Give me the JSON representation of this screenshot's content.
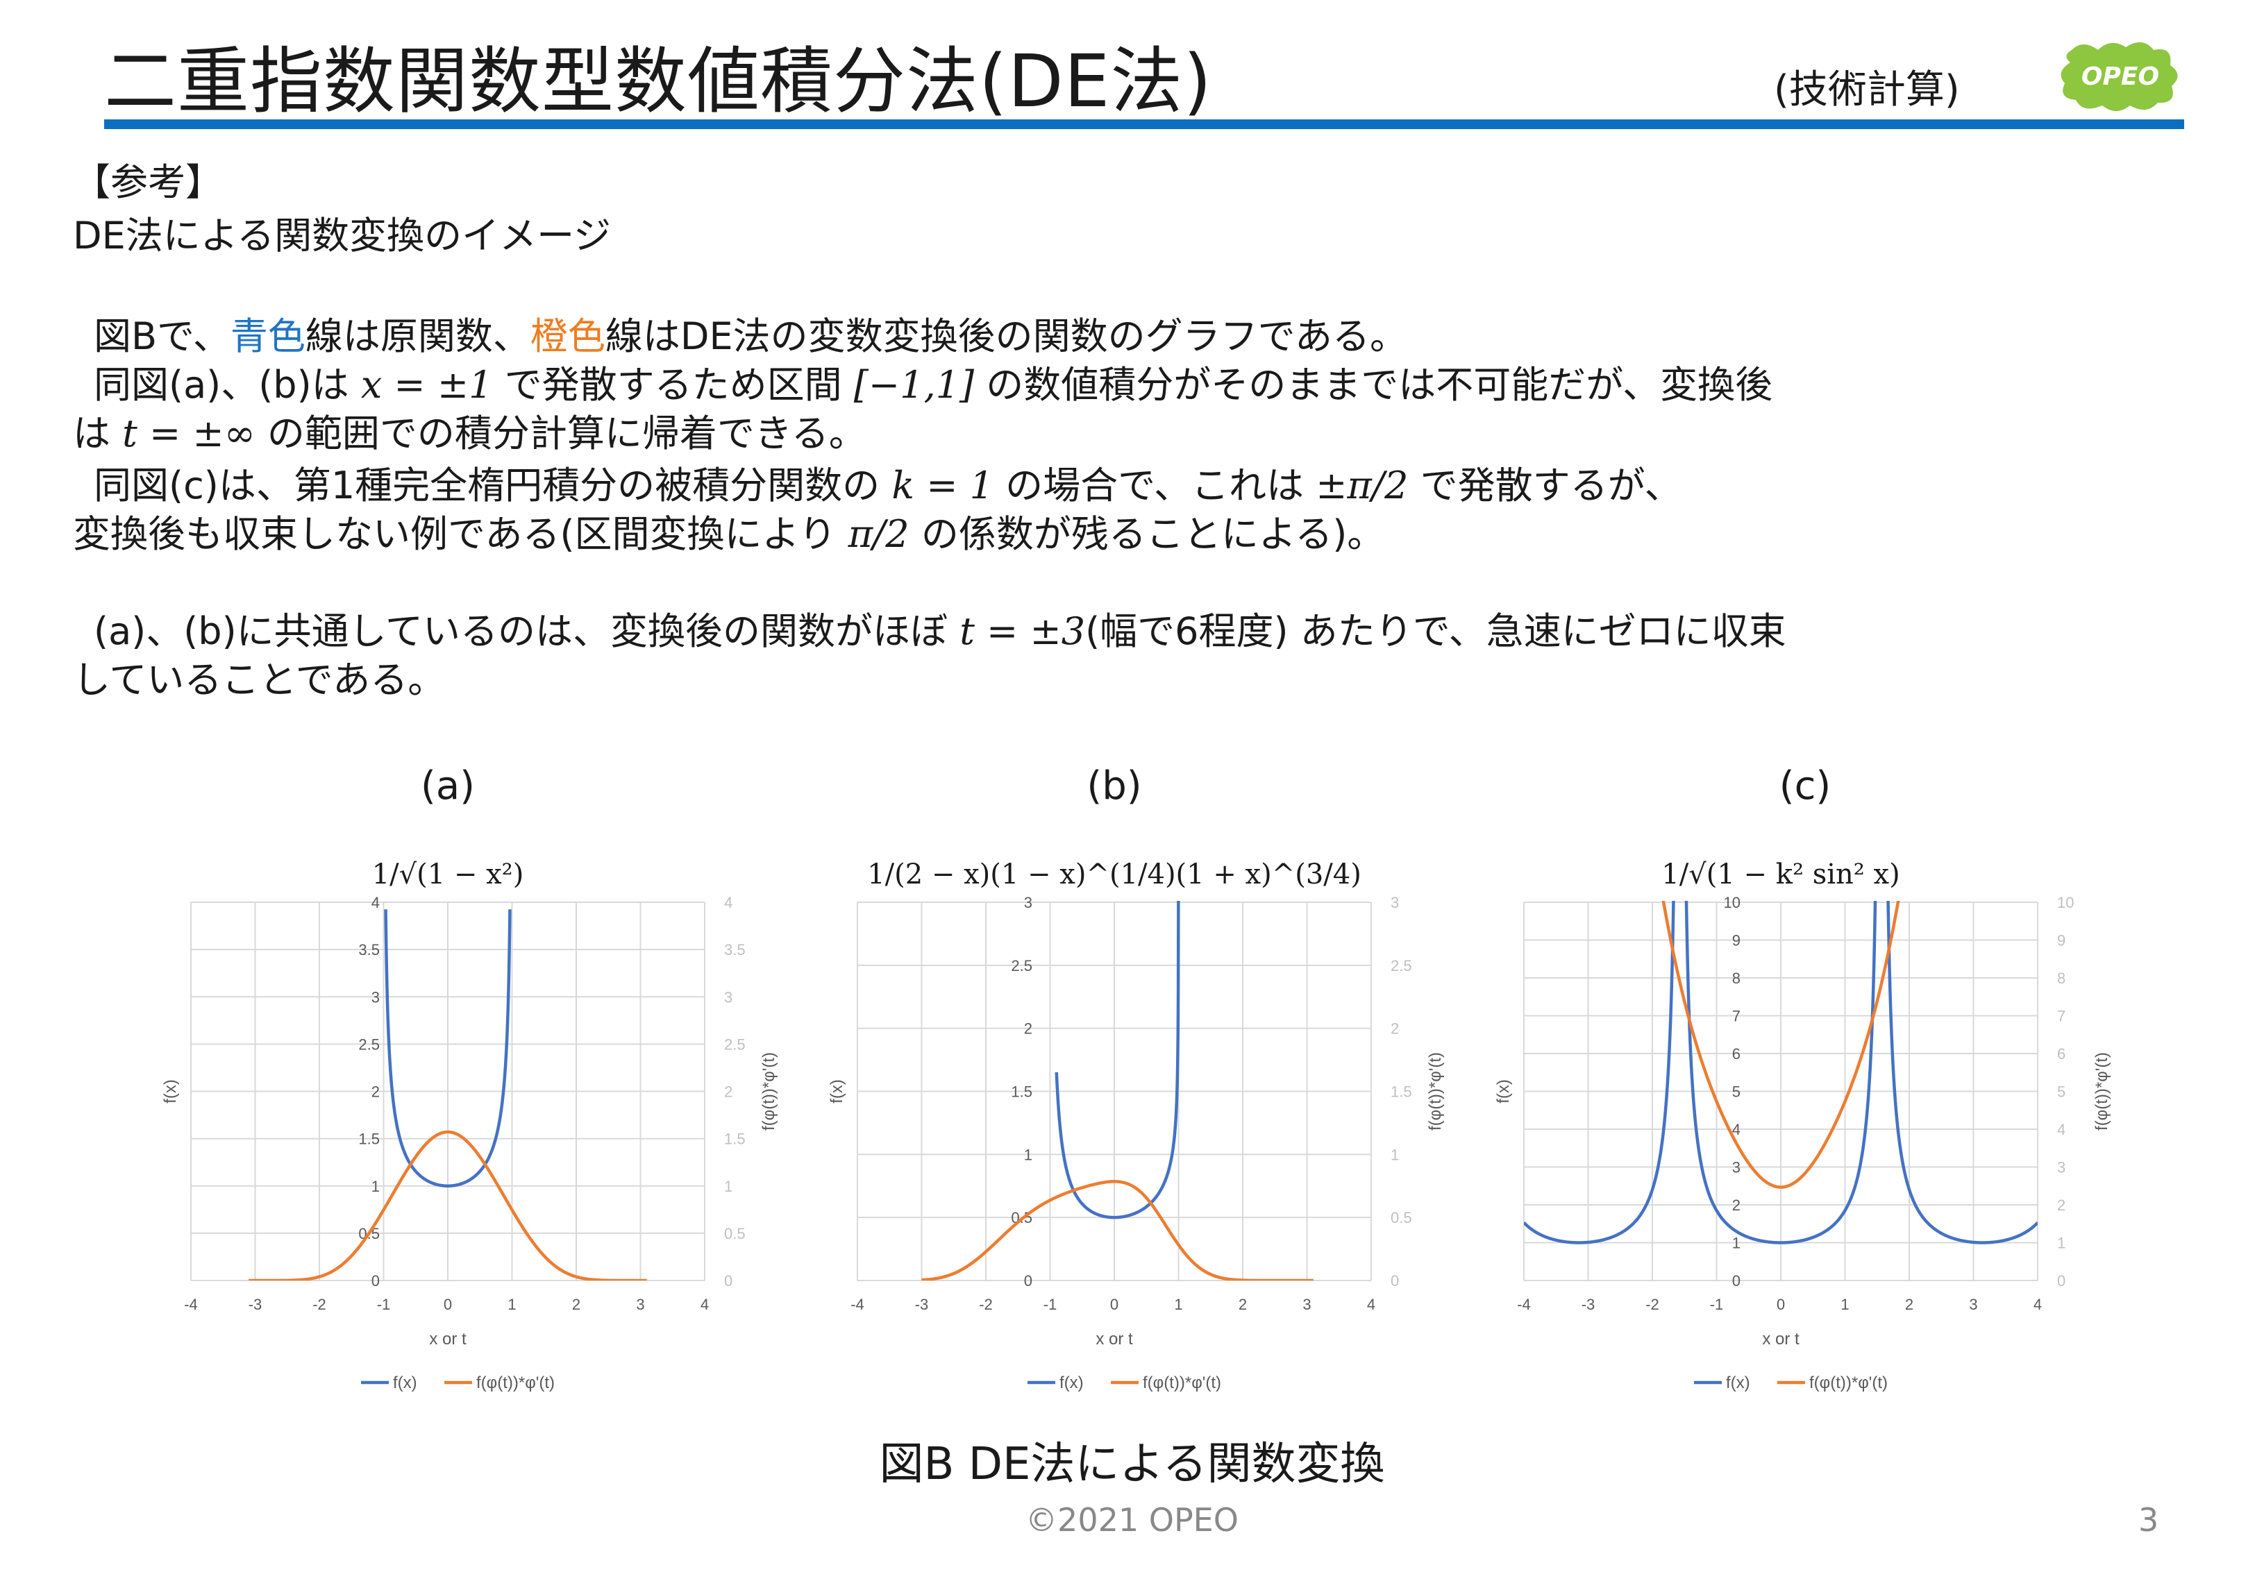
{
  "header": {
    "title": "二重指数関数型数値積分法(DE法)",
    "category": "(技術計算)",
    "logo_text": "OPEO",
    "colors": {
      "rule": "#0b6fc0",
      "logo": "#8dc63f"
    }
  },
  "body": {
    "heading": "【参考】",
    "subheading": "DE法による関数変換のイメージ",
    "p1": {
      "a": "図Bで、",
      "blue": "青色",
      "b": "線は原関数、",
      "orange": "橙色",
      "c": "線はDE法の変数変換後の関数のグラフである。"
    },
    "p2": {
      "a": "同図(a)、(b)は ",
      "m1": "x = ±1",
      "b": " で発散するため区間 ",
      "m2": "[−1,1]",
      "c": " の数値積分がそのままでは不可能だが、変換後"
    },
    "p3": {
      "a": "は ",
      "m1": "t = ±∞",
      "b": " の範囲での積分計算に帰着できる。"
    },
    "p4": {
      "a": "同図(c)は、第1種完全楕円積分の被積分関数の ",
      "m1": "k = 1",
      "b": " の場合で、これは ",
      "m2": "±π/2",
      "c": " で発散するが、"
    },
    "p5": {
      "a": "変換後も収束しない例である(区間変換により ",
      "m1": "π/2",
      "b": " の係数が残ることによる)。"
    },
    "p6": {
      "a": "(a)、(b)に共通しているのは、変換後の関数がほぼ ",
      "m1": "t = ±3",
      "b": "(幅で6程度) あたりで、急速にゼロに収束"
    },
    "p7": "していることである。"
  },
  "chart_data": [
    {
      "panel": "(a)",
      "type": "line",
      "title": "1/√(1 − x²)",
      "xlabel": "x or t",
      "ylabel": "f(x)",
      "y2label": "f(φ(t))*φ'(t)",
      "xlim": [
        -4,
        4
      ],
      "ylim": [
        0,
        4
      ],
      "y2lim": [
        0,
        4
      ],
      "xticks": [
        "-4",
        "-3",
        "-2",
        "-1",
        "0",
        "1",
        "2",
        "3",
        "4"
      ],
      "yticks": [
        "0",
        "0.5",
        "1",
        "1.5",
        "2",
        "2.5",
        "3",
        "3.5",
        "4"
      ],
      "legend_placement": "bottom",
      "grid": true,
      "series": [
        {
          "name": "f(x)",
          "color": "#4472c4",
          "domain": [
            -0.967,
            0.967
          ],
          "func": "f_a"
        },
        {
          "name": "f(φ(t))*φ'(t)",
          "color": "#ed7d31",
          "domain": [
            -3.1,
            3.1
          ],
          "func": "g_a"
        }
      ]
    },
    {
      "panel": "(b)",
      "type": "line",
      "title": "1/(2 − x)(1 − x)^(1/4)(1 + x)^(3/4)",
      "xlabel": "x or t",
      "ylabel": "f(x)",
      "y2label": "f(φ(t))*φ'(t)",
      "xlim": [
        -4,
        4
      ],
      "ylim": [
        0,
        3
      ],
      "y2lim": [
        0,
        3
      ],
      "xticks": [
        "-4",
        "-3",
        "-2",
        "-1",
        "0",
        "1",
        "2",
        "3",
        "4"
      ],
      "yticks": [
        "0",
        "0.5",
        "1",
        "1.5",
        "2",
        "2.5",
        "3"
      ],
      "legend_placement": "bottom",
      "grid": true,
      "series": [
        {
          "name": "f(x)",
          "color": "#4472c4",
          "domain": [
            -0.9,
            0.9985
          ],
          "func": "f_b"
        },
        {
          "name": "f(φ(t))*φ'(t)",
          "color": "#ed7d31",
          "domain": [
            -3,
            3.1
          ],
          "func": "g_b"
        }
      ]
    },
    {
      "panel": "(c)",
      "type": "line",
      "title": "1/√(1 − k² sin² x)",
      "xlabel": "x or t",
      "ylabel": "f(x)",
      "y2label": "f(φ(t))*φ'(t)",
      "xlim": [
        -4,
        4
      ],
      "ylim": [
        0,
        10
      ],
      "y2lim": [
        0,
        10
      ],
      "xticks": [
        "-4",
        "-3",
        "-2",
        "-1",
        "0",
        "1",
        "2",
        "3",
        "4"
      ],
      "yticks": [
        "0",
        "1",
        "2",
        "3",
        "4",
        "5",
        "6",
        "7",
        "8",
        "9",
        "10"
      ],
      "legend_placement": "bottom",
      "grid": true,
      "series": [
        {
          "name": "f(x)",
          "color": "#4472c4",
          "domain": [
            -4,
            4
          ],
          "func": "f_c"
        },
        {
          "name": "f(φ(t))*φ'(t)",
          "color": "#ed7d31",
          "domain": [
            -2.4,
            2.4
          ],
          "func": "g_c"
        }
      ]
    }
  ],
  "panel_titles": [
    "(a)",
    "(b)",
    "(c)"
  ],
  "caption": "図B DE法による関数変換",
  "footer": {
    "copyright": "©2021 OPEO",
    "page": "3"
  }
}
